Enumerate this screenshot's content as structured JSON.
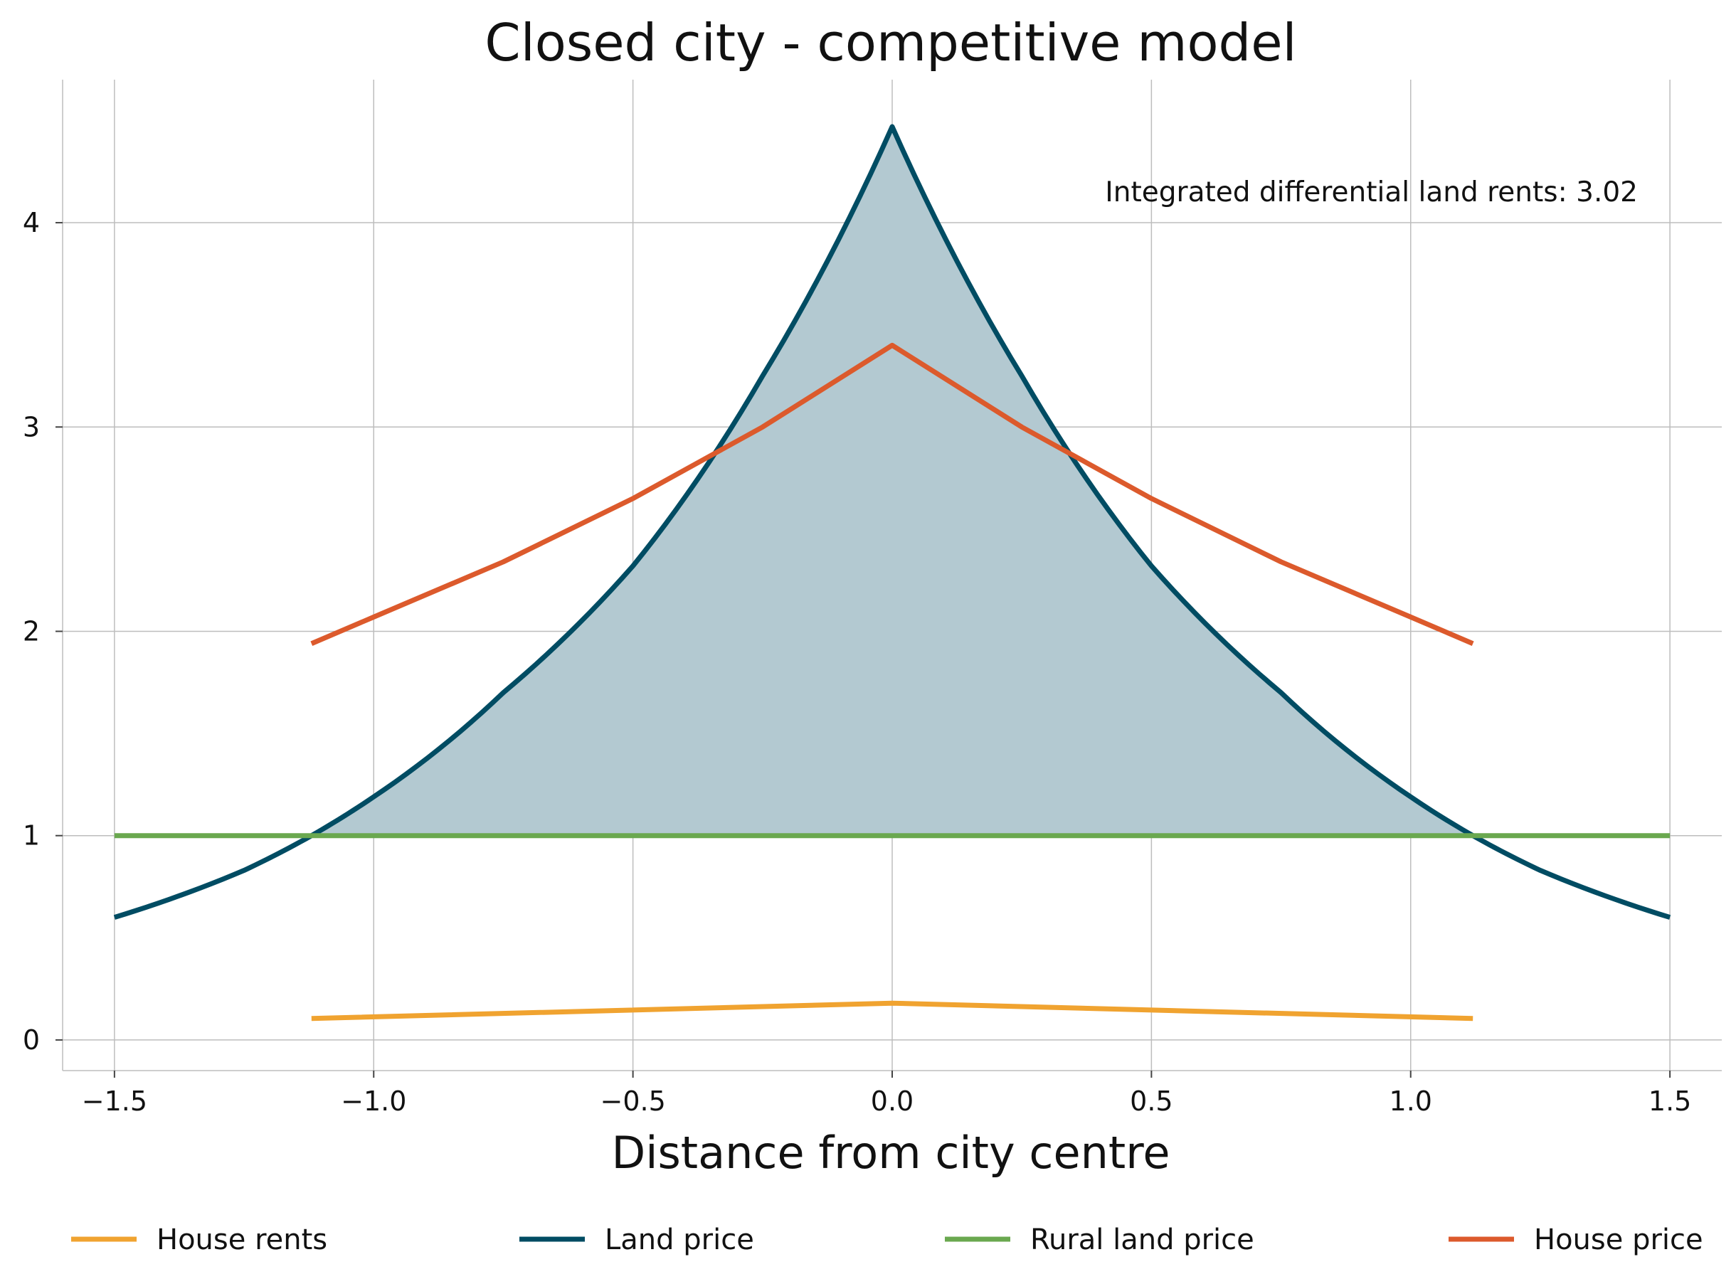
{
  "chart_data": {
    "type": "line",
    "title": "Closed city - competitive model",
    "xlabel": "Distance from city centre",
    "ylabel": "",
    "xlim": [
      -1.6,
      1.6
    ],
    "ylim": [
      -0.15,
      4.7
    ],
    "xticks": [
      -1.5,
      -1.0,
      -0.5,
      0.0,
      0.5,
      1.0,
      1.5
    ],
    "xtick_labels": [
      "−1.5",
      "−1.0",
      "−0.5",
      "0.0",
      "0.5",
      "1.0",
      "1.5"
    ],
    "yticks": [
      0,
      1,
      2,
      3,
      4
    ],
    "ytick_labels": [
      "0",
      "1",
      "2",
      "3",
      "4"
    ],
    "grid": true,
    "legend_position": "bottom",
    "annotation": "Integrated differential land rents: 3.02",
    "fill_between": {
      "series": "Land price",
      "baseline_series": "Rural land price",
      "x_range": [
        -1.12,
        1.12
      ],
      "color": "#b3c9d1"
    },
    "series": [
      {
        "name": "House rents",
        "color": "#f0a330",
        "x": [
          -1.12,
          0.0,
          1.12
        ],
        "values": [
          0.105,
          0.18,
          0.105
        ]
      },
      {
        "name": "Land price",
        "color": "#004c63",
        "x": [
          -1.5,
          -1.25,
          -1.12,
          -1.0,
          -0.75,
          -0.5,
          -0.25,
          0.0,
          0.25,
          0.5,
          0.75,
          1.0,
          1.12,
          1.25,
          1.5
        ],
        "values": [
          0.6,
          0.83,
          1.0,
          1.19,
          1.7,
          2.32,
          3.25,
          4.47,
          3.25,
          2.32,
          1.7,
          1.19,
          1.0,
          0.83,
          0.6
        ]
      },
      {
        "name": "Rural land price",
        "color": "#6aa84f",
        "x": [
          -1.5,
          1.5
        ],
        "values": [
          1.0,
          1.0
        ]
      },
      {
        "name": "House price",
        "color": "#dc5a2c",
        "x": [
          -1.12,
          -1.0,
          -0.75,
          -0.5,
          -0.25,
          0.0,
          0.25,
          0.5,
          0.75,
          1.0,
          1.12
        ],
        "values": [
          1.94,
          2.07,
          2.34,
          2.65,
          3.0,
          3.4,
          3.0,
          2.65,
          2.34,
          2.07,
          1.94
        ]
      }
    ]
  }
}
